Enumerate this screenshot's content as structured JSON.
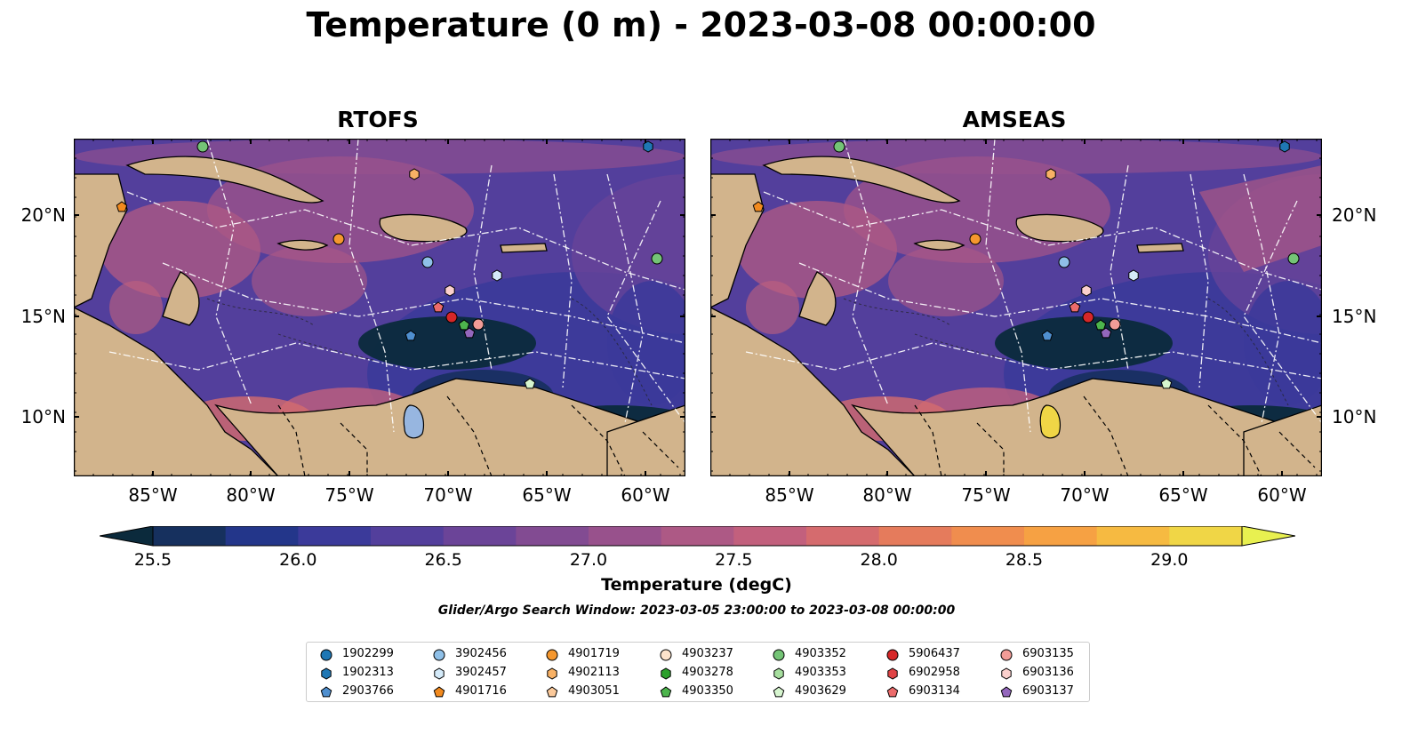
{
  "title": "Temperature (0 m) - 2023-03-08 00:00:00",
  "panels": [
    {
      "title": "RTOFS"
    },
    {
      "title": "AMSEAS"
    }
  ],
  "lon_ticks": [
    "85°W",
    "80°W",
    "75°W",
    "70°W",
    "65°W",
    "60°W"
  ],
  "lat_ticks": [
    "20°N",
    "15°N",
    "10°N"
  ],
  "colorbar": {
    "ticks": [
      "25.5",
      "26.0",
      "26.5",
      "27.0",
      "27.5",
      "28.0",
      "28.5",
      "29.0"
    ],
    "label": "Temperature (degC)",
    "colors": [
      "#0b2a3c",
      "#16305e",
      "#23368a",
      "#3b3a9a",
      "#533f9c",
      "#6b4498",
      "#824b92",
      "#98518c",
      "#ad5985",
      "#c2607d",
      "#d56b6e",
      "#e57b5c",
      "#f08d4e",
      "#f6a143",
      "#f6ba41",
      "#f0d646",
      "#e8f050"
    ]
  },
  "search_window": "Glider/Argo Search Window: 2023-03-05 23:00:00 to 2023-03-08 00:00:00",
  "legend": [
    {
      "id": "1902299",
      "marker": "circle",
      "color": "#1f77b4"
    },
    {
      "id": "1902313",
      "marker": "hexagon",
      "color": "#1f77b4"
    },
    {
      "id": "2903766",
      "marker": "pentagon",
      "color": "#4f8fcf"
    },
    {
      "id": "3902456",
      "marker": "circle",
      "color": "#8fc0e8"
    },
    {
      "id": "3902457",
      "marker": "hexagon",
      "color": "#d4eaf9"
    },
    {
      "id": "4901716",
      "marker": "pentagon",
      "color": "#f28a1e"
    },
    {
      "id": "4901719",
      "marker": "circle",
      "color": "#f5972e"
    },
    {
      "id": "4902113",
      "marker": "hexagon",
      "color": "#f8b165"
    },
    {
      "id": "4903051",
      "marker": "pentagon",
      "color": "#fbc99a"
    },
    {
      "id": "4903237",
      "marker": "circle",
      "color": "#fde3cc"
    },
    {
      "id": "4903278",
      "marker": "hexagon",
      "color": "#2ca02c"
    },
    {
      "id": "4903350",
      "marker": "pentagon",
      "color": "#4db54d"
    },
    {
      "id": "4903352",
      "marker": "circle",
      "color": "#74c476"
    },
    {
      "id": "4903353",
      "marker": "hexagon",
      "color": "#a6de9e"
    },
    {
      "id": "4903629",
      "marker": "pentagon",
      "color": "#d6f5cf"
    },
    {
      "id": "5906437",
      "marker": "circle",
      "color": "#d62728"
    },
    {
      "id": "6902958",
      "marker": "hexagon",
      "color": "#e04345"
    },
    {
      "id": "6903134",
      "marker": "pentagon",
      "color": "#ec6b6b"
    },
    {
      "id": "6903135",
      "marker": "circle",
      "color": "#f29c97"
    },
    {
      "id": "6903136",
      "marker": "hexagon",
      "color": "#fbd0cd"
    },
    {
      "id": "6903137",
      "marker": "pentagon",
      "color": "#9467bd"
    }
  ],
  "map_colors": {
    "land": "#d2b48c",
    "lake": "#97b6e0",
    "border": "#000000"
  }
}
